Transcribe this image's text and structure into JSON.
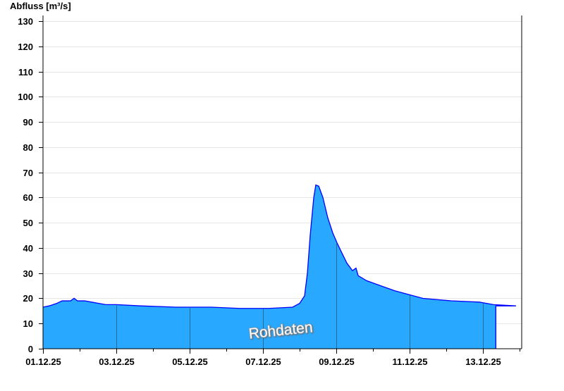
{
  "chart_data": {
    "type": "area",
    "ylabel": "Abfluss [m³/s]",
    "xlabel": "",
    "ylim": [
      0,
      130
    ],
    "yticks": [
      0,
      10,
      20,
      30,
      40,
      50,
      60,
      70,
      80,
      90,
      100,
      110,
      120,
      130
    ],
    "xlim": [
      "2025-12-01T00:00",
      "2025-12-14T02:00"
    ],
    "xticks": [
      {
        "label": "01.12.25",
        "date": "2025-12-01"
      },
      {
        "label": "03.12.25",
        "date": "2025-12-03"
      },
      {
        "label": "05.12.25",
        "date": "2025-12-05"
      },
      {
        "label": "07.12.25",
        "date": "2025-12-07"
      },
      {
        "label": "09.12.25",
        "date": "2025-12-09"
      },
      {
        "label": "11.12.25",
        "date": "2025-12-11"
      },
      {
        "label": "13.12.25",
        "date": "2025-12-13"
      }
    ],
    "grid": "horizontal",
    "annotation": "Rohdaten",
    "colors": {
      "fill": "#29a8ff",
      "line": "#0000ff",
      "grid": "#e6e6e6",
      "day_lines": "#2a6a8f"
    },
    "series": [
      {
        "x": [
          "2025-12-01T00:00",
          "2025-12-01T04:00",
          "2025-12-01T09:00",
          "2025-12-01T12:30",
          "2025-12-01T18:00",
          "2025-12-01T20:20",
          "2025-12-01T22:35",
          "2025-12-02T03:15",
          "2025-12-02T07:50",
          "2025-12-02T12:30",
          "2025-12-02T17:05",
          "2025-12-03T00:00",
          "2025-12-03T16:10",
          "2025-12-04T15:15",
          "2025-12-05T14:20",
          "2025-12-06T08:45",
          "2025-12-07T03:15",
          "2025-12-07T19:25",
          "2025-12-08T00:00",
          "2025-12-08T03:15",
          "2025-12-08T05:05",
          "2025-12-08T06:55",
          "2025-12-08T09:15",
          "2025-12-08T10:35",
          "2025-12-08T12:30",
          "2025-12-08T15:15",
          "2025-12-08T18:25",
          "2025-12-08T21:40",
          "2025-12-09T00:30",
          "2025-12-09T03:40",
          "2025-12-09T06:55",
          "2025-12-09T10:35",
          "2025-12-09T12:55",
          "2025-12-09T14:20",
          "2025-12-09T19:50",
          "2025-12-10T05:05",
          "2025-12-10T14:20",
          "2025-12-10T23:30",
          "2025-12-11T08:45",
          "2025-12-12T03:15",
          "2025-12-12T21:40",
          "2025-12-13T06:55",
          "2025-12-13T21:40"
        ],
        "y": [
          16.5,
          17,
          18,
          19,
          19,
          20,
          19,
          19,
          18.5,
          18,
          17.5,
          17.5,
          17,
          16.5,
          16.5,
          16,
          16,
          16.5,
          18,
          21,
          30,
          45,
          60,
          65,
          64.5,
          60,
          52,
          46,
          42,
          38,
          34,
          31,
          32,
          29,
          27,
          25,
          23,
          21.5,
          20,
          19,
          18.5,
          17.5,
          17
        ]
      }
    ]
  }
}
